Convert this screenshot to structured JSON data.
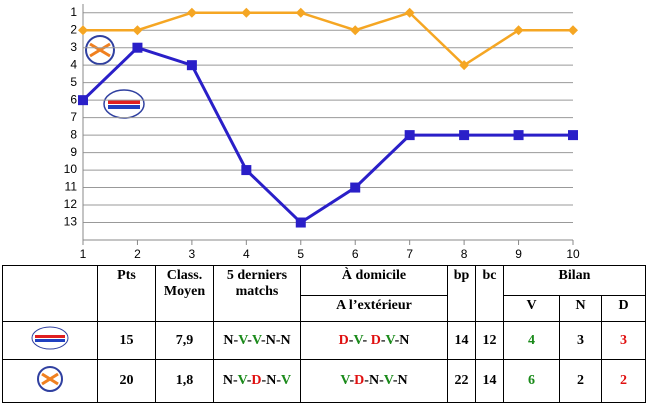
{
  "chart_data": {
    "type": "line",
    "x": [
      1,
      2,
      3,
      4,
      5,
      6,
      7,
      8,
      9,
      10
    ],
    "xlim": [
      1,
      10
    ],
    "xticks": [
      1,
      2,
      3,
      4,
      5,
      6,
      7,
      8,
      9,
      10
    ],
    "ylim": [
      0.5,
      14
    ],
    "yticks": [
      1,
      2,
      3,
      4,
      5,
      6,
      7,
      8,
      9,
      10,
      11,
      12,
      13
    ],
    "y_inverted": true,
    "grid": true,
    "series": [
      {
        "color": "#f5a623",
        "marker": "diamond",
        "values": [
          2,
          2,
          1,
          1,
          1,
          2,
          1,
          4,
          2,
          2
        ]
      },
      {
        "color": "#2a1fc8",
        "marker": "square",
        "values": [
          6,
          3,
          4,
          10,
          13,
          11,
          8,
          8,
          8,
          8
        ]
      }
    ]
  },
  "table": {
    "headers": {
      "pts": "Pts",
      "class": "Class. Moyen",
      "last5": "5 derniers matchs",
      "home": "À domicile",
      "away": "A l’extérieur",
      "bp": "bp",
      "bc": "bc",
      "bilan": "Bilan",
      "v": "V",
      "n": "N",
      "d": "D"
    },
    "rows": [
      [
        15,
        "7,9",
        "N-V-V-N-N",
        "D-V- D-V-N",
        14,
        12,
        4,
        3,
        3
      ],
      [
        20,
        "1,8",
        "N-V-D-N-V",
        "V-D-N-V-N",
        22,
        14,
        6,
        2,
        2
      ]
    ]
  }
}
